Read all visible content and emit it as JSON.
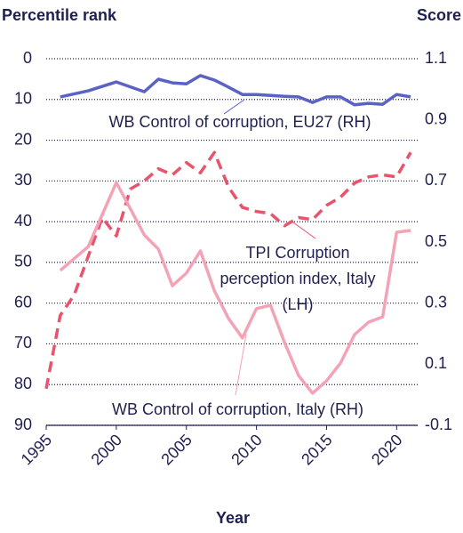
{
  "chart_data": {
    "type": "line",
    "y_label": "Percentile rank",
    "y2_label": "Score",
    "x_label": "Year",
    "xlim": [
      1995,
      2021.5
    ],
    "xticks": [
      1995,
      2000,
      2005,
      2010,
      2015,
      2020
    ],
    "ylim": [
      90,
      0
    ],
    "yticks": [
      0,
      10,
      20,
      30,
      40,
      50,
      60,
      70,
      80,
      90
    ],
    "y2lim": [
      -0.1,
      1.1
    ],
    "y2ticks": [
      1.1,
      0.9,
      0.7,
      0.5,
      0.3,
      0.1,
      -0.1
    ],
    "grid": true,
    "series": [
      {
        "name": "WB Control of corruption, EU27 (RH)",
        "color": "#5a62c6",
        "axis": "y2",
        "dashed": false,
        "x": [
          1996,
          1998,
          2000,
          2002,
          2003,
          2004,
          2005,
          2006,
          2007,
          2008,
          2009,
          2010,
          2011,
          2012,
          2013,
          2014,
          2015,
          2016,
          2017,
          2018,
          2019,
          2020,
          2021
        ],
        "values": [
          0.975,
          0.995,
          1.024,
          0.992,
          1.033,
          1.021,
          1.018,
          1.045,
          1.03,
          1.007,
          0.983,
          0.983,
          0.98,
          0.977,
          0.975,
          0.957,
          0.975,
          0.975,
          0.949,
          0.954,
          0.951,
          0.983,
          0.975
        ]
      },
      {
        "name": "TPI Corruption perception index, Italy (LH)",
        "color": "#e8546c",
        "axis": "y",
        "dashed": true,
        "x": [
          1995,
          1996,
          1997,
          1999,
          2000,
          2001,
          2002,
          2003,
          2004,
          2005,
          2006,
          2007,
          2008,
          2009,
          2010,
          2011,
          2012,
          2013,
          2014,
          2015,
          2016,
          2017,
          2018,
          2019,
          2020,
          2021
        ],
        "values": [
          81,
          63,
          58,
          39,
          43.5,
          32,
          30,
          27,
          28.5,
          25.5,
          28,
          23,
          31.5,
          36.5,
          37.5,
          38,
          41,
          39,
          39.5,
          36,
          34,
          30.5,
          29,
          28.5,
          29,
          23
        ]
      },
      {
        "name": "WB Control of corruption, Italy (RH)",
        "color": "#f4a3b6",
        "axis": "y2",
        "dashed": false,
        "x": [
          1996,
          1998,
          2000,
          2002,
          2003,
          2004,
          2005,
          2006,
          2007,
          2008,
          2009,
          2010,
          2011,
          2012,
          2013,
          2014,
          2015,
          2016,
          2017,
          2018,
          2019,
          2020,
          2021
        ],
        "values": [
          0.407,
          0.485,
          0.695,
          0.523,
          0.477,
          0.357,
          0.398,
          0.471,
          0.34,
          0.25,
          0.186,
          0.282,
          0.293,
          0.171,
          0.063,
          0.005,
          0.046,
          0.104,
          0.197,
          0.238,
          0.255,
          0.532,
          0.538
        ]
      }
    ]
  }
}
